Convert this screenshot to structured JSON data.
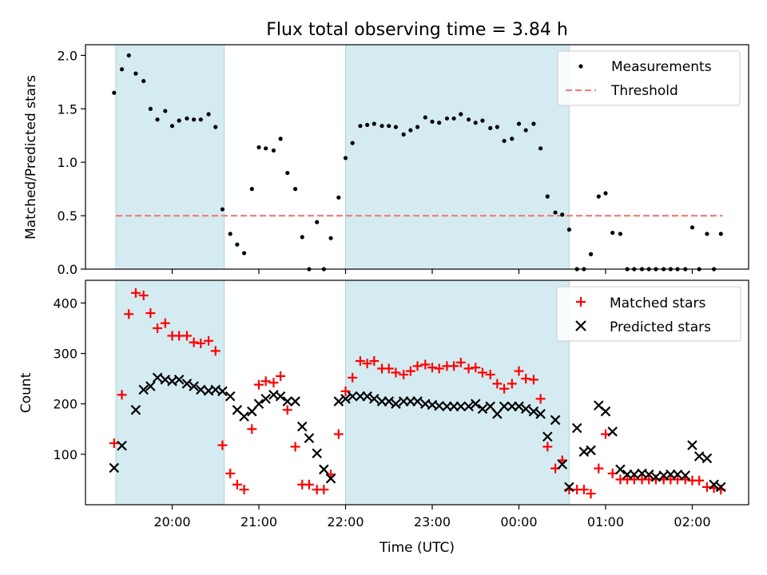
{
  "chart_data": {
    "type": "scatter",
    "title": "Flux total observing time = 3.84 h",
    "xlabel": "Time (UTC)",
    "x_tick_labels": [
      "20:00",
      "21:00",
      "22:00",
      "23:00",
      "00:00",
      "01:00",
      "02:00"
    ],
    "x_tick_hours": [
      20,
      21,
      22,
      23,
      24,
      25,
      26
    ],
    "xlim_hours": [
      19.0,
      26.65
    ],
    "x_units": "hours UTC continuing past midnight (24 = 00:00, 25 = 01:00, 26 = 02:00)",
    "shaded_intervals_hours": [
      [
        19.35,
        20.6
      ],
      [
        22.0,
        24.58
      ]
    ],
    "shade_color": "#d4ebf1",
    "top_panel": {
      "ylabel": "Matched/Predicted stars",
      "ylim": [
        0,
        2.1
      ],
      "yticks": [
        0,
        0.5,
        1.0,
        1.5,
        2.0
      ],
      "ytick_labels": [
        "0.0",
        "0.5",
        "1.0",
        "1.5",
        "2.0"
      ],
      "legend": [
        "Measurements",
        "Threshold"
      ],
      "legend_position": "upper right",
      "threshold": {
        "value": 0.5,
        "x_range_hours": [
          19.35,
          26.35
        ],
        "color": "#f08080"
      },
      "measurements": {
        "color": "#000000",
        "x": [
          19.33,
          19.42,
          19.5,
          19.58,
          19.67,
          19.75,
          19.83,
          19.92,
          20.0,
          20.08,
          20.17,
          20.25,
          20.33,
          20.42,
          20.5,
          20.58,
          20.67,
          20.75,
          20.83,
          20.92,
          21.0,
          21.08,
          21.17,
          21.25,
          21.33,
          21.42,
          21.5,
          21.58,
          21.67,
          21.75,
          21.83,
          21.92,
          22.0,
          22.08,
          22.17,
          22.25,
          22.33,
          22.42,
          22.5,
          22.58,
          22.67,
          22.75,
          22.83,
          22.92,
          23.0,
          23.08,
          23.17,
          23.25,
          23.33,
          23.42,
          23.5,
          23.58,
          23.67,
          23.75,
          23.83,
          23.92,
          24.0,
          24.08,
          24.17,
          24.25,
          24.33,
          24.42,
          24.5,
          24.58,
          24.67,
          24.75,
          24.83,
          24.92,
          25.0,
          25.08,
          25.17,
          25.25,
          25.33,
          25.42,
          25.5,
          25.58,
          25.67,
          25.75,
          25.83,
          25.92,
          26.0,
          26.08,
          26.17,
          26.25,
          26.33
        ],
        "y": [
          1.65,
          1.87,
          2.0,
          1.83,
          1.76,
          1.5,
          1.4,
          1.48,
          1.34,
          1.39,
          1.41,
          1.4,
          1.4,
          1.45,
          1.33,
          0.56,
          0.33,
          0.23,
          0.15,
          0.75,
          1.14,
          1.13,
          1.11,
          1.22,
          0.9,
          0.75,
          0.3,
          0.0,
          0.44,
          0.0,
          0.29,
          0.67,
          1.04,
          1.18,
          1.34,
          1.35,
          1.36,
          1.34,
          1.34,
          1.33,
          1.26,
          1.3,
          1.33,
          1.42,
          1.38,
          1.37,
          1.41,
          1.41,
          1.45,
          1.4,
          1.37,
          1.39,
          1.32,
          1.33,
          1.2,
          1.22,
          1.36,
          1.3,
          1.36,
          1.13,
          0.68,
          0.53,
          0.51,
          0.37,
          0.0,
          0.0,
          0.14,
          0.68,
          0.71,
          0.34,
          0.33,
          0.0,
          0.0,
          0.0,
          0.0,
          0.0,
          0.0,
          0.0,
          0.0,
          0.0,
          0.39,
          0.0,
          0.33,
          0.0,
          0.33
        ]
      }
    },
    "bottom_panel": {
      "ylabel": "Count",
      "ylim": [
        0,
        445
      ],
      "yticks": [
        100,
        200,
        300,
        400
      ],
      "ytick_labels": [
        "100",
        "200",
        "300",
        "400"
      ],
      "legend": [
        "Matched stars",
        "Predicted stars"
      ],
      "legend_position": "upper right",
      "series": [
        {
          "name": "Matched stars",
          "marker": "+",
          "color": "#ff0000",
          "x": [
            19.33,
            19.42,
            19.5,
            19.58,
            19.67,
            19.75,
            19.83,
            19.92,
            20.0,
            20.08,
            20.17,
            20.25,
            20.33,
            20.42,
            20.5,
            20.58,
            20.67,
            20.75,
            20.83,
            20.92,
            21.0,
            21.08,
            21.17,
            21.25,
            21.33,
            21.42,
            21.5,
            21.58,
            21.67,
            21.75,
            21.83,
            21.92,
            22.0,
            22.08,
            22.17,
            22.25,
            22.33,
            22.42,
            22.5,
            22.58,
            22.67,
            22.75,
            22.83,
            22.92,
            23.0,
            23.08,
            23.17,
            23.25,
            23.33,
            23.42,
            23.5,
            23.58,
            23.67,
            23.75,
            23.83,
            23.92,
            24.0,
            24.08,
            24.17,
            24.25,
            24.33,
            24.42,
            24.5,
            24.58,
            24.67,
            24.75,
            24.83,
            24.92,
            25.0,
            25.08,
            25.17,
            25.25,
            25.33,
            25.42,
            25.5,
            25.58,
            25.67,
            25.75,
            25.83,
            25.92,
            26.0,
            26.08,
            26.17,
            26.25,
            26.33
          ],
          "y": [
            122,
            218,
            378,
            420,
            415,
            380,
            350,
            360,
            335,
            335,
            335,
            322,
            320,
            325,
            305,
            118,
            62,
            40,
            30,
            150,
            238,
            245,
            242,
            255,
            188,
            115,
            40,
            40,
            30,
            30,
            60,
            140,
            225,
            252,
            285,
            280,
            285,
            270,
            270,
            262,
            258,
            265,
            275,
            278,
            272,
            270,
            275,
            275,
            282,
            270,
            272,
            262,
            258,
            240,
            230,
            240,
            265,
            250,
            248,
            210,
            115,
            72,
            88,
            30,
            30,
            30,
            22,
            72,
            140,
            62,
            50,
            50,
            50,
            50,
            50,
            50,
            50,
            50,
            50,
            50,
            48,
            48,
            35,
            33,
            30
          ]
        },
        {
          "name": "Predicted stars",
          "marker": "x",
          "color": "#000000",
          "x": [
            19.33,
            19.42,
            19.58,
            19.67,
            19.75,
            19.83,
            19.92,
            20.0,
            20.08,
            20.17,
            20.25,
            20.33,
            20.42,
            20.5,
            20.58,
            20.67,
            20.75,
            20.83,
            20.92,
            21.0,
            21.08,
            21.17,
            21.25,
            21.33,
            21.42,
            21.5,
            21.58,
            21.67,
            21.75,
            21.83,
            21.92,
            22.0,
            22.08,
            22.17,
            22.25,
            22.33,
            22.42,
            22.5,
            22.58,
            22.67,
            22.75,
            22.83,
            22.92,
            23.0,
            23.08,
            23.17,
            23.25,
            23.33,
            23.42,
            23.5,
            23.58,
            23.67,
            23.75,
            23.83,
            23.92,
            24.0,
            24.08,
            24.17,
            24.25,
            24.33,
            24.42,
            24.5,
            24.58,
            24.67,
            24.75,
            24.83,
            24.92,
            25.0,
            25.08,
            25.17,
            25.25,
            25.33,
            25.42,
            25.5,
            25.58,
            25.67,
            25.75,
            25.83,
            25.92,
            26.0,
            26.08,
            26.17,
            26.25,
            26.33
          ],
          "y": [
            73,
            117,
            188,
            228,
            235,
            252,
            248,
            245,
            248,
            240,
            235,
            228,
            226,
            228,
            225,
            215,
            188,
            175,
            185,
            200,
            210,
            218,
            215,
            205,
            205,
            155,
            132,
            102,
            70,
            52,
            205,
            210,
            215,
            215,
            215,
            210,
            205,
            205,
            200,
            205,
            205,
            205,
            200,
            198,
            196,
            195,
            195,
            195,
            195,
            200,
            190,
            195,
            180,
            195,
            195,
            195,
            190,
            185,
            180,
            135,
            168,
            80,
            35,
            152,
            105,
            108,
            197,
            185,
            145,
            70,
            60,
            60,
            62,
            60,
            55,
            58,
            60,
            60,
            58,
            118,
            96,
            92,
            40,
            35
          ]
        }
      ]
    }
  }
}
